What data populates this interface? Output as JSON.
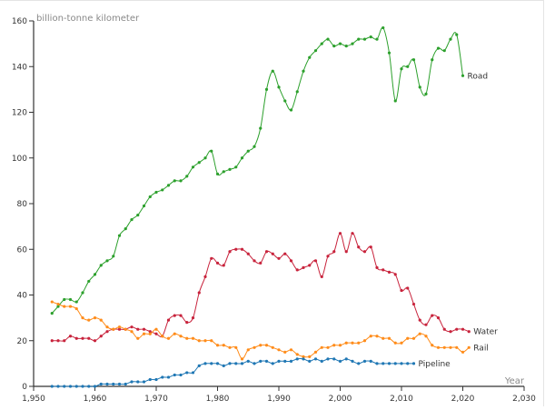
{
  "chart_data": {
    "type": "line",
    "ylabel": "billion-tonne kilometer",
    "xlabel": "Year",
    "xlim": [
      1950,
      2030
    ],
    "ylim": [
      0,
      160
    ],
    "xticks": [
      1950,
      1960,
      1970,
      1980,
      1990,
      2000,
      2010,
      2020,
      2030
    ],
    "xtick_labels": [
      "1,950",
      "1,960",
      "1,970",
      "1,980",
      "1,990",
      "2,000",
      "2,010",
      "2,020",
      "2,030"
    ],
    "yticks": [
      0,
      20,
      40,
      60,
      80,
      100,
      120,
      140,
      160
    ],
    "ytick_labels": [
      "0",
      "20",
      "40",
      "60",
      "80",
      "100",
      "120",
      "140",
      "160"
    ],
    "grid": false,
    "legend": "labels at line ends",
    "series": [
      {
        "name": "Road",
        "color": "#2ca02c",
        "start_year": 1953,
        "values": [
          32,
          35,
          38,
          38,
          37,
          41,
          46,
          49,
          53,
          55,
          57,
          66,
          69,
          73,
          75,
          79,
          83,
          85,
          86,
          88,
          90,
          90,
          92,
          96,
          98,
          100,
          103,
          93,
          94,
          95,
          96,
          100,
          103,
          105,
          113,
          130,
          138,
          131,
          125,
          121,
          129,
          138,
          144,
          147,
          150,
          152,
          149,
          150,
          149,
          150,
          152,
          152,
          153,
          152,
          157,
          146,
          125,
          139,
          140,
          143,
          131,
          128,
          143,
          148,
          147,
          152,
          154,
          136
        ]
      },
      {
        "name": "Water",
        "color": "#c8233c",
        "start_year": 1953,
        "values": [
          20,
          20,
          20,
          22,
          21,
          21,
          21,
          20,
          22,
          24,
          25,
          25,
          25,
          26,
          25,
          25,
          24,
          23,
          22,
          29,
          31,
          31,
          28,
          30,
          41,
          48,
          56,
          54,
          53,
          59,
          60,
          60,
          58,
          55,
          54,
          59,
          58,
          56,
          58,
          55,
          51,
          52,
          53,
          55,
          48,
          57,
          59,
          67,
          59,
          67,
          61,
          59,
          61,
          52,
          51,
          50,
          49,
          42,
          43,
          36,
          29,
          27,
          31,
          30,
          25,
          24,
          25,
          25,
          24
        ]
      },
      {
        "name": "Rail",
        "color": "#ff8c1a",
        "start_year": 1953,
        "values": [
          37,
          36,
          35,
          35,
          34,
          30,
          29,
          30,
          29,
          26,
          25,
          26,
          25,
          24,
          21,
          23,
          23,
          25,
          22,
          21,
          23,
          22,
          21,
          21,
          20,
          20,
          20,
          18,
          18,
          17,
          17,
          12,
          16,
          17,
          18,
          18,
          17,
          16,
          15,
          16,
          14,
          13,
          13,
          15,
          17,
          17,
          18,
          18,
          19,
          19,
          19,
          20,
          22,
          22,
          21,
          21,
          19,
          19,
          21,
          21,
          23,
          22,
          18,
          17,
          17,
          17,
          17,
          15,
          17
        ]
      },
      {
        "name": "Pipeline",
        "color": "#1f77b4",
        "start_year": 1953,
        "values": [
          0,
          0,
          0,
          0,
          0,
          0,
          0,
          0,
          1,
          1,
          1,
          1,
          1,
          2,
          2,
          2,
          3,
          3,
          4,
          4,
          5,
          5,
          6,
          6,
          9,
          10,
          10,
          10,
          9,
          10,
          10,
          10,
          11,
          10,
          11,
          11,
          10,
          11,
          11,
          11,
          12,
          12,
          11,
          12,
          11,
          12,
          12,
          11,
          12,
          11,
          10,
          11,
          11,
          10,
          10,
          10,
          10,
          10,
          10,
          10
        ]
      }
    ]
  }
}
